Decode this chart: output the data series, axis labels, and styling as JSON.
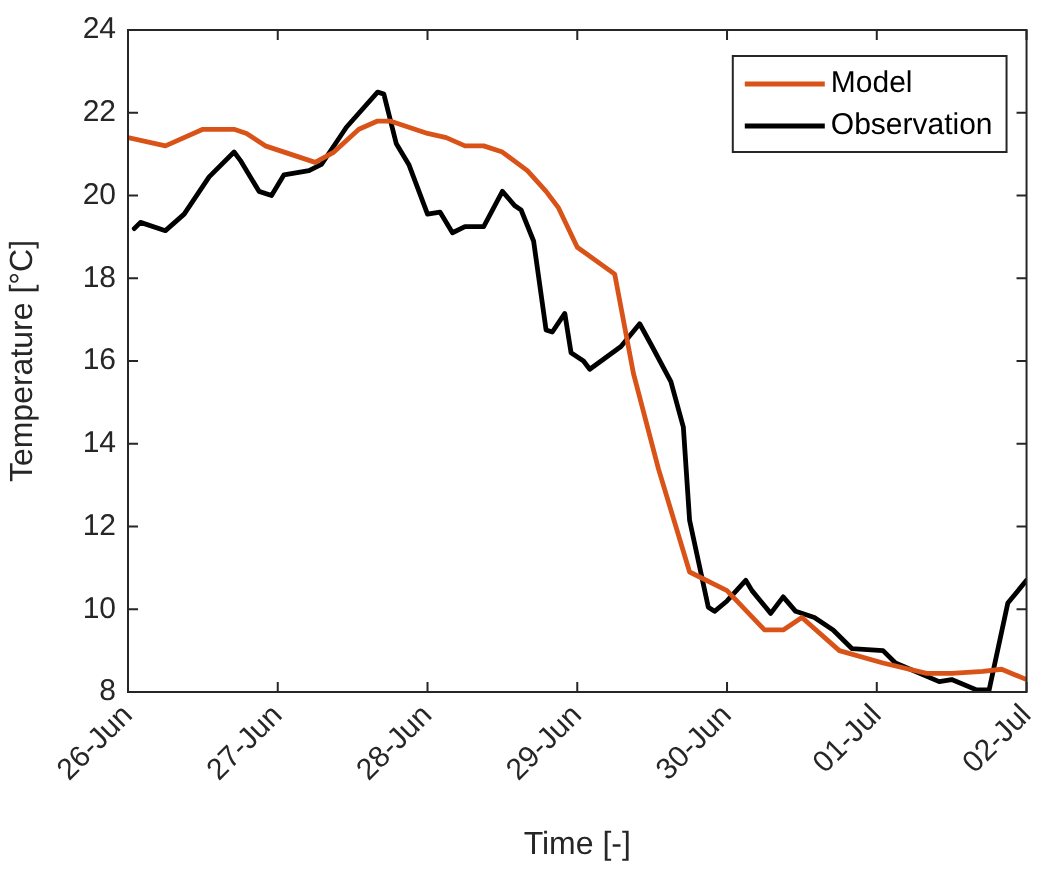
{
  "chart_data": {
    "type": "line",
    "xlabel": "Time [-]",
    "ylabel": "Temperature [°C]",
    "xlim": [
      "--06-26",
      "--07-02"
    ],
    "xticks": [
      {
        "value": "--06-26",
        "label": "26-Jun"
      },
      {
        "value": "--06-27",
        "label": "27-Jun"
      },
      {
        "value": "--06-28",
        "label": "28-Jun"
      },
      {
        "value": "--06-29",
        "label": "29-Jun"
      },
      {
        "value": "--06-30",
        "label": "30-Jun"
      },
      {
        "value": "--07-01",
        "label": "01-Jul"
      },
      {
        "value": "--07-02",
        "label": "02-Jul"
      }
    ],
    "ylim": [
      8,
      24
    ],
    "yticks": [
      8,
      10,
      12,
      14,
      16,
      18,
      20,
      22,
      24
    ],
    "legend": "top right",
    "marker": "none",
    "line_style": "solid",
    "series": [
      {
        "name": "Model",
        "color": "#d95319",
        "x": [
          "--06-26T00:00",
          "--06-26T06:00",
          "--06-26T12:00",
          "--06-26T17:00",
          "--06-26T19:00",
          "--06-26T22:00",
          "--06-27T06:00",
          "--06-27T09:00",
          "--06-27T13:00",
          "--06-27T16:00",
          "--06-27T18:00",
          "--06-28T00:00",
          "--06-28T03:00",
          "--06-28T06:00",
          "--06-28T09:00",
          "--06-28T12:00",
          "--06-28T16:00",
          "--06-28T19:00",
          "--06-28T21:00",
          "--06-29T00:00",
          "--06-29T06:00",
          "--06-29T09:00",
          "--06-29T13:00",
          "--06-29T18:00",
          "--06-30T00:00",
          "--06-30T06:00",
          "--06-30T09:00",
          "--06-30T12:00",
          "--06-30T18:00",
          "--07-01T01:00",
          "--07-01T08:00",
          "--07-01T12:00",
          "--07-01T17:00",
          "--07-01T20:00",
          "--07-02T00:00"
        ],
        "values": [
          21.4,
          21.2,
          21.6,
          21.6,
          21.5,
          21.2,
          20.8,
          21.05,
          21.6,
          21.8,
          21.8,
          21.5,
          21.4,
          21.2,
          21.2,
          21.05,
          20.6,
          20.1,
          19.7,
          18.75,
          18.1,
          15.7,
          13.4,
          10.9,
          10.45,
          9.5,
          9.5,
          9.8,
          9.0,
          8.7,
          8.45,
          8.45,
          8.5,
          8.55,
          8.3
        ]
      },
      {
        "name": "Observation",
        "color": "#000000",
        "x": [
          "--06-26T01:00",
          "--06-26T02:00",
          "--06-26T06:00",
          "--06-26T09:00",
          "--06-26T13:00",
          "--06-26T17:00",
          "--06-26T18:00",
          "--06-26T21:00",
          "--06-26T23:00",
          "--06-27T01:00",
          "--06-27T05:00",
          "--06-27T07:00",
          "--06-27T11:00",
          "--06-27T16:00",
          "--06-27T17:00",
          "--06-27T19:00",
          "--06-27T21:00",
          "--06-28T00:00",
          "--06-28T02:00",
          "--06-28T04:00",
          "--06-28T06:00",
          "--06-28T09:00",
          "--06-28T12:00",
          "--06-28T14:00",
          "--06-28T15:00",
          "--06-28T17:00",
          "--06-28T19:00",
          "--06-28T20:00",
          "--06-28T22:00",
          "--06-28T23:00",
          "--06-29T01:00",
          "--06-29T02:00",
          "--06-29T07:00",
          "--06-29T10:00",
          "--06-29T12:00",
          "--06-29T15:00",
          "--06-29T17:00",
          "--06-29T18:00",
          "--06-29T21:00",
          "--06-29T22:00",
          "--06-30T00:00",
          "--06-30T03:00",
          "--06-30T04:00",
          "--06-30T07:00",
          "--06-30T09:00",
          "--06-30T11:00",
          "--06-30T14:00",
          "--06-30T17:00",
          "--06-30T20:00",
          "--07-01T01:00",
          "--07-01T03:00",
          "--07-01T10:00",
          "--07-01T12:00",
          "--07-01T16:00",
          "--07-01T18:00",
          "--07-01T21:00",
          "--07-02T00:00"
        ],
        "values": [
          19.2,
          19.35,
          19.15,
          19.55,
          20.45,
          21.05,
          20.85,
          20.1,
          20.0,
          20.5,
          20.6,
          20.75,
          21.65,
          22.5,
          22.45,
          21.25,
          20.75,
          19.55,
          19.6,
          19.1,
          19.25,
          19.25,
          20.1,
          19.75,
          19.65,
          18.9,
          16.75,
          16.7,
          17.15,
          16.2,
          16.0,
          15.8,
          16.35,
          16.9,
          16.35,
          15.5,
          14.4,
          12.15,
          10.05,
          9.95,
          10.2,
          10.7,
          10.45,
          9.9,
          10.3,
          9.95,
          9.8,
          9.5,
          9.05,
          9.0,
          8.7,
          8.25,
          8.3,
          8.05,
          8.05,
          10.15,
          10.7
        ]
      }
    ]
  }
}
